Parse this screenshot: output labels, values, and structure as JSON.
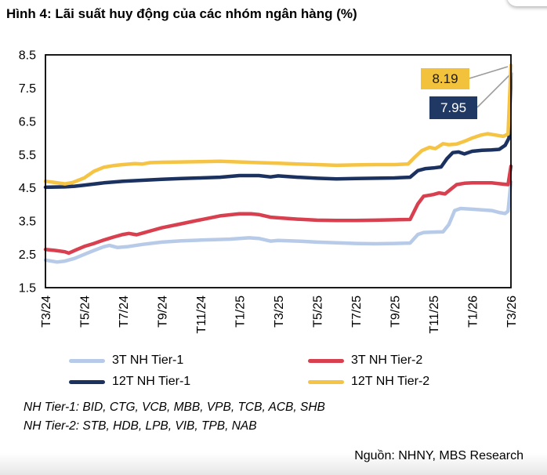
{
  "title": "Hình 4: Lãi suất huy động của các nhóm ngân hàng (%)",
  "chart_data": {
    "type": "line",
    "title": "Hình 4: Lãi suất huy động của các nhóm ngân hàng (%)",
    "xlabel": "",
    "ylabel": "",
    "x_unit": "months from T3/24 (0 = T3/24, 24 = T3/26)",
    "x_range": [
      0,
      24
    ],
    "ylim": [
      1.5,
      8.5
    ],
    "grid": false,
    "legend_position": "bottom",
    "yticks": [
      "8.5",
      "7.5",
      "6.5",
      "5.5",
      "4.5",
      "3.5",
      "2.5",
      "1.5"
    ],
    "xticks": [
      "T3/24",
      "T5/24",
      "T7/24",
      "T9/24",
      "T11/24",
      "T1/25",
      "T3/25",
      "T5/25",
      "T7/25",
      "T9/25",
      "T11/25",
      "T1/26",
      "T3/26"
    ],
    "series": [
      {
        "name": "3T NH Tier-1",
        "color": "#B7CBE9",
        "points": [
          [
            0,
            2.33
          ],
          [
            0.6,
            2.27
          ],
          [
            1,
            2.3
          ],
          [
            1.5,
            2.38
          ],
          [
            2,
            2.5
          ],
          [
            2.5,
            2.62
          ],
          [
            3,
            2.73
          ],
          [
            3.3,
            2.77
          ],
          [
            3.7,
            2.71
          ],
          [
            4.2,
            2.73
          ],
          [
            5,
            2.8
          ],
          [
            6,
            2.87
          ],
          [
            7,
            2.91
          ],
          [
            8,
            2.93
          ],
          [
            9,
            2.95
          ],
          [
            9.5,
            2.96
          ],
          [
            10,
            2.98
          ],
          [
            10.5,
            3.0
          ],
          [
            11,
            2.98
          ],
          [
            11.6,
            2.9
          ],
          [
            12,
            2.92
          ],
          [
            13,
            2.9
          ],
          [
            14,
            2.87
          ],
          [
            15,
            2.85
          ],
          [
            16,
            2.83
          ],
          [
            17,
            2.82
          ],
          [
            18,
            2.83
          ],
          [
            18.8,
            2.84
          ],
          [
            19.2,
            3.1
          ],
          [
            19.5,
            3.16
          ],
          [
            20,
            3.17
          ],
          [
            20.5,
            3.18
          ],
          [
            20.8,
            3.4
          ],
          [
            21.1,
            3.82
          ],
          [
            21.4,
            3.88
          ],
          [
            22,
            3.86
          ],
          [
            22.5,
            3.84
          ],
          [
            23,
            3.82
          ],
          [
            23.4,
            3.76
          ],
          [
            23.7,
            3.73
          ],
          [
            23.85,
            3.8
          ],
          [
            24,
            4.68
          ]
        ]
      },
      {
        "name": "3T NH Tier-2",
        "color": "#D8404F",
        "points": [
          [
            0,
            2.65
          ],
          [
            0.5,
            2.62
          ],
          [
            1,
            2.58
          ],
          [
            1.2,
            2.54
          ],
          [
            1.6,
            2.64
          ],
          [
            2,
            2.74
          ],
          [
            2.5,
            2.83
          ],
          [
            3,
            2.93
          ],
          [
            3.5,
            3.02
          ],
          [
            4,
            3.1
          ],
          [
            4.3,
            3.13
          ],
          [
            4.7,
            3.09
          ],
          [
            5,
            3.14
          ],
          [
            5.5,
            3.22
          ],
          [
            6,
            3.3
          ],
          [
            7,
            3.42
          ],
          [
            8,
            3.54
          ],
          [
            9,
            3.66
          ],
          [
            10,
            3.72
          ],
          [
            10.6,
            3.72
          ],
          [
            11,
            3.7
          ],
          [
            11.6,
            3.62
          ],
          [
            12,
            3.6
          ],
          [
            13,
            3.56
          ],
          [
            14,
            3.53
          ],
          [
            15,
            3.52
          ],
          [
            16,
            3.52
          ],
          [
            17,
            3.53
          ],
          [
            18,
            3.54
          ],
          [
            18.8,
            3.55
          ],
          [
            19.2,
            4.02
          ],
          [
            19.5,
            4.25
          ],
          [
            20,
            4.3
          ],
          [
            20.3,
            4.35
          ],
          [
            20.6,
            4.32
          ],
          [
            20.9,
            4.46
          ],
          [
            21.2,
            4.6
          ],
          [
            21.6,
            4.64
          ],
          [
            22,
            4.65
          ],
          [
            23,
            4.65
          ],
          [
            23.5,
            4.62
          ],
          [
            23.85,
            4.6
          ],
          [
            24,
            5.15
          ]
        ]
      },
      {
        "name": "12T NH Tier-1",
        "color": "#1B3160",
        "points": [
          [
            0,
            4.52
          ],
          [
            1,
            4.53
          ],
          [
            1.5,
            4.55
          ],
          [
            2,
            4.58
          ],
          [
            3,
            4.65
          ],
          [
            4,
            4.7
          ],
          [
            5,
            4.73
          ],
          [
            6,
            4.76
          ],
          [
            7,
            4.78
          ],
          [
            8,
            4.8
          ],
          [
            9,
            4.82
          ],
          [
            10,
            4.87
          ],
          [
            11,
            4.87
          ],
          [
            11.6,
            4.83
          ],
          [
            12,
            4.86
          ],
          [
            13,
            4.82
          ],
          [
            14,
            4.79
          ],
          [
            15,
            4.77
          ],
          [
            16,
            4.78
          ],
          [
            17,
            4.79
          ],
          [
            18,
            4.8
          ],
          [
            18.8,
            4.82
          ],
          [
            19.2,
            5.02
          ],
          [
            19.6,
            5.08
          ],
          [
            20,
            5.1
          ],
          [
            20.4,
            5.13
          ],
          [
            20.7,
            5.38
          ],
          [
            21,
            5.56
          ],
          [
            21.3,
            5.58
          ],
          [
            21.6,
            5.52
          ],
          [
            22,
            5.6
          ],
          [
            22.5,
            5.63
          ],
          [
            23,
            5.64
          ],
          [
            23.4,
            5.66
          ],
          [
            23.7,
            5.78
          ],
          [
            23.9,
            6.0
          ],
          [
            24,
            7.95
          ]
        ]
      },
      {
        "name": "12T NH Tier-2",
        "color": "#F5C445",
        "points": [
          [
            0,
            4.7
          ],
          [
            0.5,
            4.66
          ],
          [
            1,
            4.62
          ],
          [
            1.4,
            4.66
          ],
          [
            2,
            4.8
          ],
          [
            2.5,
            5.0
          ],
          [
            3,
            5.12
          ],
          [
            3.5,
            5.17
          ],
          [
            4,
            5.2
          ],
          [
            4.6,
            5.23
          ],
          [
            5,
            5.22
          ],
          [
            5.4,
            5.26
          ],
          [
            6,
            5.27
          ],
          [
            7,
            5.28
          ],
          [
            8,
            5.29
          ],
          [
            9,
            5.3
          ],
          [
            10,
            5.28
          ],
          [
            11,
            5.26
          ],
          [
            12,
            5.24
          ],
          [
            13,
            5.22
          ],
          [
            14,
            5.2
          ],
          [
            15,
            5.18
          ],
          [
            16,
            5.19
          ],
          [
            17,
            5.2
          ],
          [
            18,
            5.2
          ],
          [
            18.7,
            5.22
          ],
          [
            19,
            5.4
          ],
          [
            19.4,
            5.62
          ],
          [
            19.8,
            5.72
          ],
          [
            20.1,
            5.68
          ],
          [
            20.5,
            5.83
          ],
          [
            20.8,
            5.8
          ],
          [
            21.2,
            5.82
          ],
          [
            21.6,
            5.9
          ],
          [
            22,
            6.0
          ],
          [
            22.4,
            6.08
          ],
          [
            22.8,
            6.13
          ],
          [
            23.3,
            6.08
          ],
          [
            23.6,
            6.05
          ],
          [
            23.85,
            6.12
          ],
          [
            24,
            8.19
          ]
        ]
      }
    ],
    "callouts": [
      {
        "value": "8.19",
        "series": "12T NH Tier-2",
        "bg": "#F2C23C",
        "text_color": "#1A1A1A"
      },
      {
        "value": "7.95",
        "series": "12T NH Tier-1",
        "bg": "#1F3864",
        "text_color": "#FFFFFF"
      }
    ]
  },
  "footnotes": [
    "NH Tier-1: BID, CTG, VCB, MBB, VPB, TCB, ACB, SHB",
    "NH Tier-2: STB, HDB, LPB, VIB, TPB, NAB"
  ],
  "source": "Nguồn: NHNY, MBS Research",
  "colors": {
    "axis": "#000000",
    "leader_line": "#9B9B9B"
  }
}
